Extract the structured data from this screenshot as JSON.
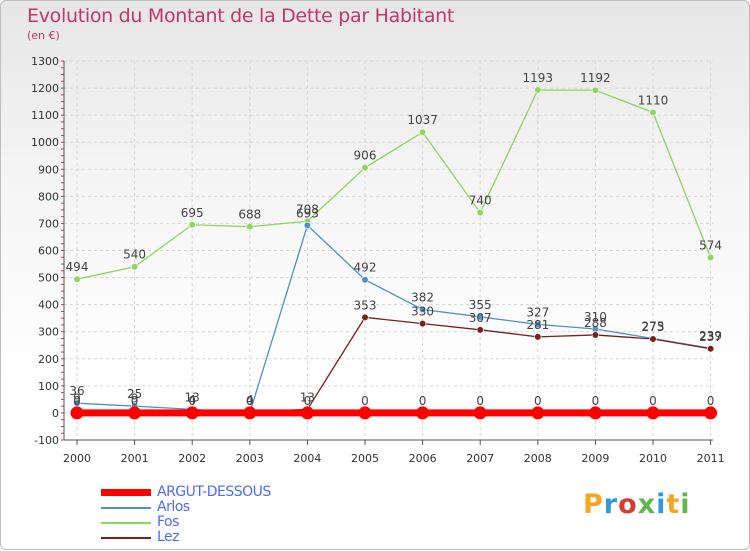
{
  "title": "Evolution du Montant de la Dette par Habitant",
  "subtitle": "(en €)",
  "logo": {
    "text": "Proxiti",
    "colors": [
      "#f5a623",
      "#2f9ad6",
      "#d63c2f",
      "#5db84f",
      "#2f9ad6",
      "#f5a623",
      "#5db84f"
    ]
  },
  "chart_data": {
    "type": "line",
    "x": [
      "2000",
      "2001",
      "2002",
      "2003",
      "2004",
      "2005",
      "2006",
      "2007",
      "2008",
      "2009",
      "2010",
      "2011"
    ],
    "ylim": [
      -100,
      1300
    ],
    "yticks": [
      "-100",
      "0",
      "100",
      "200",
      "300",
      "400",
      "500",
      "600",
      "700",
      "800",
      "900",
      "1000",
      "1100",
      "1200",
      "1300"
    ],
    "legend_position": "bottom-left",
    "series": [
      {
        "name": "ARGUT-DESSOUS",
        "color": "#ff0000",
        "values": [
          0,
          0,
          0,
          0,
          0,
          0,
          0,
          0,
          0,
          0,
          0,
          0
        ],
        "labels": [
          "0",
          "0",
          "0",
          "0",
          "0",
          "0",
          "0",
          "0",
          "0",
          "0",
          "0",
          "0"
        ]
      },
      {
        "name": "Arlos",
        "color": "#4f90c9",
        "values": [
          36,
          25,
          13,
          0,
          693,
          492,
          382,
          355,
          327,
          310,
          275,
          239
        ],
        "labels": [
          "36",
          "25",
          "13",
          "0",
          "693",
          "492",
          "382",
          "355",
          "327",
          "310",
          "275",
          "239"
        ]
      },
      {
        "name": "Fos",
        "color": "#8ed65e",
        "values": [
          494,
          540,
          695,
          688,
          708,
          906,
          1037,
          740,
          1193,
          1192,
          1110,
          574
        ],
        "labels": [
          "494",
          "540",
          "695",
          "688",
          "708",
          "906",
          "1037",
          "740",
          "1193",
          "1192",
          "1110",
          "574"
        ]
      },
      {
        "name": "Lez",
        "color": "#7a1f1f",
        "values": [
          9,
          9,
          4,
          4,
          13,
          353,
          330,
          307,
          281,
          288,
          273,
          237
        ],
        "labels": [
          "9",
          "9",
          "4",
          "4",
          "13",
          "353",
          "330",
          "307",
          "281",
          "288",
          "273",
          "237"
        ]
      }
    ]
  }
}
